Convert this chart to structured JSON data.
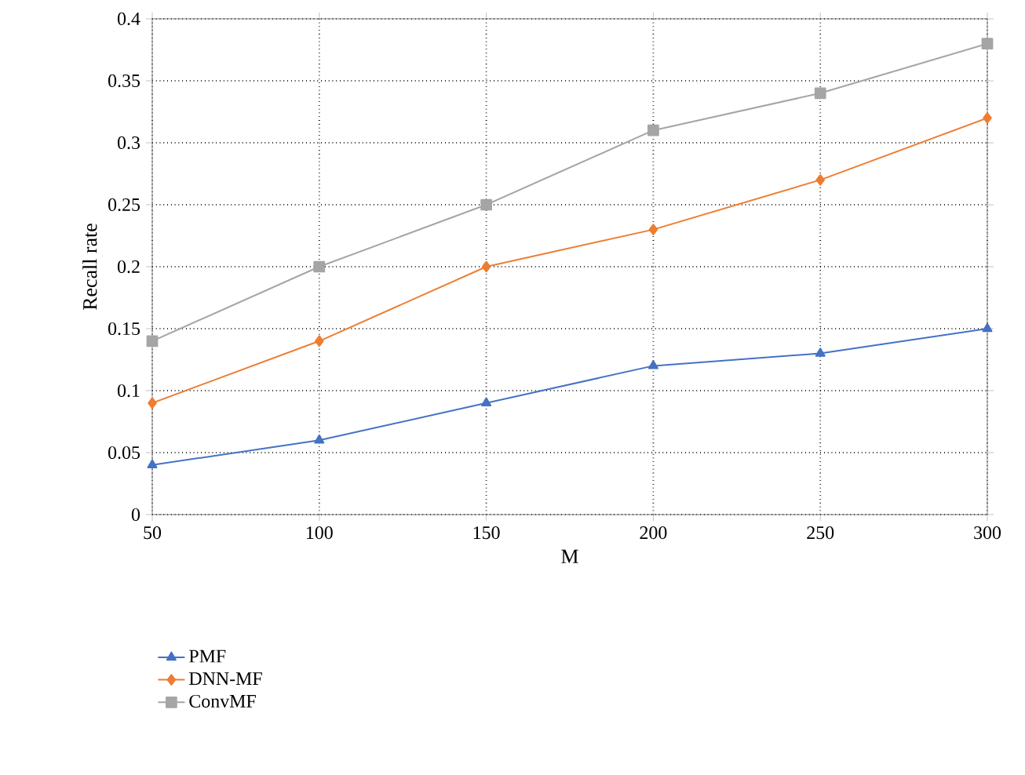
{
  "chart_data": {
    "type": "line",
    "xlabel": "M",
    "ylabel": "Recall rate",
    "x": [
      50,
      100,
      150,
      200,
      250,
      300
    ],
    "xlim": [
      50,
      300
    ],
    "xticks": [
      50,
      100,
      150,
      200,
      250,
      300
    ],
    "ylim": [
      0,
      0.4
    ],
    "yticks": [
      0,
      0.05,
      0.1,
      0.15,
      0.2,
      0.25,
      0.3,
      0.35,
      0.4
    ],
    "grid": true,
    "legend": "bottom left",
    "line_style": "solid",
    "series": [
      {
        "name": "PMF",
        "color": "#4472c4",
        "marker": "triangle",
        "values": [
          0.04,
          0.06,
          0.09,
          0.12,
          0.13,
          0.15
        ]
      },
      {
        "name": "DNN-MF",
        "color": "#ed7d31",
        "marker": "diamond",
        "values": [
          0.09,
          0.14,
          0.2,
          0.23,
          0.27,
          0.32
        ]
      },
      {
        "name": "ConvMF",
        "color": "#a5a5a5",
        "marker": "square",
        "values": [
          0.14,
          0.2,
          0.25,
          0.31,
          0.34,
          0.38
        ]
      }
    ]
  }
}
